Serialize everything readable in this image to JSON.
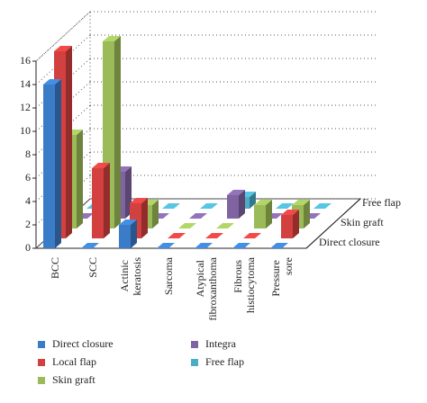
{
  "chart_data": {
    "type": "bar3d",
    "categories": [
      "BCC",
      "SCC",
      "Actinic keratosis",
      "Sarcoma",
      "Atypical fibroxanthoma",
      "Fibrous histiocytoma",
      "Pressure sore"
    ],
    "series": [
      {
        "name": "Direct closure",
        "color": "#3b7cc8",
        "values": [
          14,
          0,
          2,
          0,
          0,
          0,
          0
        ]
      },
      {
        "name": "Local flap",
        "color": "#d2403f",
        "values": [
          16,
          6,
          3,
          0,
          0,
          0,
          2
        ]
      },
      {
        "name": "Skin graft",
        "color": "#9bbb59",
        "values": [
          8,
          16,
          2,
          0,
          0,
          2,
          2
        ]
      },
      {
        "name": "Integra",
        "color": "#8064a2",
        "values": [
          0,
          4,
          0,
          0,
          2,
          0,
          0
        ]
      },
      {
        "name": "Free flap",
        "color": "#4bacc6",
        "values": [
          0,
          0,
          0,
          0,
          1,
          0,
          0
        ]
      }
    ],
    "ylim": [
      0,
      16
    ],
    "yticks": [
      0,
      2,
      4,
      6,
      8,
      10,
      12,
      14,
      16
    ],
    "grid": true
  }
}
